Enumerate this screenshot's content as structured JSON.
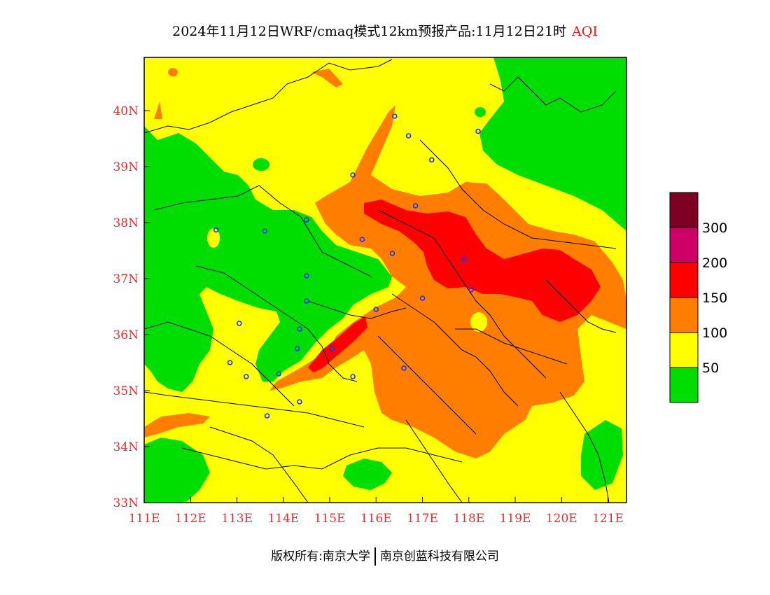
{
  "title": {
    "main": "2024年11月12日WRF/cmaq模式12km预报产品:11月12日21时",
    "variable": "AQI"
  },
  "axes": {
    "lon_labels": [
      "111E",
      "112E",
      "113E",
      "114E",
      "115E",
      "116E",
      "117E",
      "118E",
      "119E",
      "120E",
      "121E"
    ],
    "lat_labels": [
      "33N",
      "34N",
      "35N",
      "36N",
      "37N",
      "38N",
      "39N",
      "40N"
    ],
    "lon_range": [
      111,
      121.4
    ],
    "lat_range": [
      33,
      40.95
    ]
  },
  "legend": {
    "levels": [
      {
        "label": "",
        "color": "#00dd00"
      },
      {
        "label": "50",
        "color": "#ffff00"
      },
      {
        "label": "100",
        "color": "#ff7e00"
      },
      {
        "label": "150",
        "color": "#ff0000"
      },
      {
        "label": "200",
        "color": "#cc0066"
      },
      {
        "label": "300",
        "color": "#7e0023"
      }
    ]
  },
  "stations": [
    [
      116.4,
      39.9
    ],
    [
      116.7,
      39.55
    ],
    [
      117.2,
      39.12
    ],
    [
      118.2,
      39.63
    ],
    [
      115.5,
      38.85
    ],
    [
      116.85,
      38.3
    ],
    [
      114.5,
      38.05
    ],
    [
      113.6,
      37.85
    ],
    [
      112.55,
      37.87
    ],
    [
      115.7,
      37.7
    ],
    [
      116.35,
      37.45
    ],
    [
      117.9,
      37.35
    ],
    [
      118.05,
      36.8
    ],
    [
      117.0,
      36.65
    ],
    [
      114.5,
      37.05
    ],
    [
      114.5,
      36.6
    ],
    [
      116.0,
      36.45
    ],
    [
      114.35,
      36.1
    ],
    [
      113.05,
      36.2
    ],
    [
      114.3,
      35.75
    ],
    [
      115.05,
      35.75
    ],
    [
      112.85,
      35.5
    ],
    [
      113.9,
      35.3
    ],
    [
      113.2,
      35.25
    ],
    [
      115.5,
      35.25
    ],
    [
      116.6,
      35.4
    ],
    [
      114.35,
      34.8
    ],
    [
      113.65,
      34.55
    ]
  ],
  "footer": {
    "left": "版权所有:南京大学",
    "right": "南京创蓝科技有限公司"
  }
}
